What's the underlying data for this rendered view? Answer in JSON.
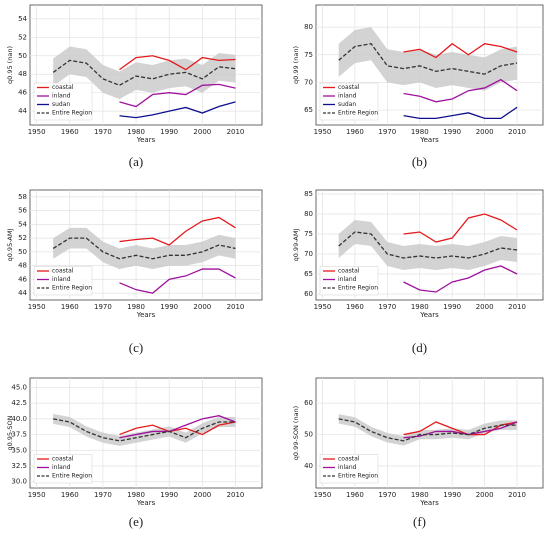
{
  "chart_data": [
    {
      "type": "line",
      "caption": "(a)",
      "xlabel": "Years",
      "ylabel": "q0.95 (nan)",
      "xlim": [
        1948,
        2018
      ],
      "xticks": [
        1950,
        1960,
        1970,
        1980,
        1990,
        2000,
        2010
      ],
      "ylim": [
        42.5,
        55.5
      ],
      "yticks": [
        44,
        46,
        48,
        50,
        52,
        54
      ],
      "grid": true,
      "legend": "lower left",
      "band": {
        "color": "#c8c8c8",
        "x": [
          1955,
          1960,
          1965,
          1970,
          1975,
          1980,
          1985,
          1990,
          1995,
          2000,
          2005,
          2010
        ],
        "low": [
          46.7,
          48.0,
          47.7,
          46.0,
          45.3,
          46.3,
          46.0,
          46.5,
          46.7,
          46.0,
          47.3,
          47.1
        ],
        "high": [
          49.7,
          51.0,
          50.7,
          49.0,
          48.3,
          49.3,
          49.0,
          49.5,
          49.7,
          49.0,
          50.3,
          50.1
        ]
      },
      "series": [
        {
          "name": "coastal",
          "color": "#e41a1c",
          "x": [
            1975,
            1980,
            1985,
            1990,
            1995,
            2000,
            2005,
            2010
          ],
          "values": [
            48.5,
            49.8,
            50.0,
            49.5,
            48.5,
            49.8,
            49.5,
            49.6
          ]
        },
        {
          "name": "inland",
          "color": "#a0119e",
          "x": [
            1975,
            1980,
            1985,
            1990,
            1995,
            2000,
            2005,
            2010
          ],
          "values": [
            45.0,
            44.5,
            45.8,
            46.0,
            45.8,
            46.8,
            46.9,
            46.5
          ]
        },
        {
          "name": "sudan",
          "color": "#10108f",
          "x": [
            1975,
            1980,
            1985,
            1990,
            1995,
            2000,
            2005,
            2010
          ],
          "values": [
            43.5,
            43.3,
            43.6,
            44.0,
            44.4,
            43.8,
            44.5,
            45.0
          ]
        },
        {
          "name": "Entire Region",
          "color": "#333333",
          "dashed": true,
          "x": [
            1955,
            1960,
            1965,
            1970,
            1975,
            1980,
            1985,
            1990,
            1995,
            2000,
            2005,
            2010
          ],
          "values": [
            48.2,
            49.5,
            49.2,
            47.5,
            46.8,
            47.8,
            47.5,
            48.0,
            48.2,
            47.5,
            48.8,
            48.6
          ]
        }
      ]
    },
    {
      "type": "line",
      "caption": "(b)",
      "xlabel": "Years",
      "ylabel": "q0.99 (nan)",
      "xlim": [
        1948,
        2018
      ],
      "xticks": [
        1950,
        1960,
        1970,
        1980,
        1990,
        2000,
        2010
      ],
      "ylim": [
        62.3,
        84
      ],
      "yticks": [
        65,
        70,
        75,
        80
      ],
      "grid": true,
      "legend": "lower left",
      "band": {
        "color": "#c8c8c8",
        "x": [
          1955,
          1960,
          1965,
          1970,
          1975,
          1980,
          1985,
          1990,
          1995,
          2000,
          2005,
          2010
        ],
        "low": [
          71,
          73.5,
          74,
          70,
          69.5,
          70,
          69,
          69.5,
          69,
          68.5,
          70,
          70.5
        ],
        "high": [
          77,
          79.5,
          80,
          76,
          75.5,
          76,
          75,
          75.5,
          75,
          74.5,
          76,
          76.5
        ]
      },
      "series": [
        {
          "name": "coastal",
          "color": "#e41a1c",
          "x": [
            1975,
            1980,
            1985,
            1990,
            1995,
            2000,
            2005,
            2010
          ],
          "values": [
            75.5,
            76,
            74.5,
            77,
            75,
            77,
            76.5,
            75.5
          ]
        },
        {
          "name": "inland",
          "color": "#a0119e",
          "x": [
            1975,
            1980,
            1985,
            1990,
            1995,
            2000,
            2005,
            2010
          ],
          "values": [
            68,
            67.5,
            66.5,
            67,
            68.5,
            69,
            70.5,
            68.5
          ]
        },
        {
          "name": "sudan",
          "color": "#10108f",
          "x": [
            1975,
            1980,
            1985,
            1990,
            1995,
            2000,
            2005,
            2010
          ],
          "values": [
            64,
            63.5,
            63.5,
            64,
            64.5,
            63.5,
            63.5,
            65.5
          ]
        },
        {
          "name": "Entire Region",
          "color": "#333333",
          "dashed": true,
          "x": [
            1955,
            1960,
            1965,
            1970,
            1975,
            1980,
            1985,
            1990,
            1995,
            2000,
            2005,
            2010
          ],
          "values": [
            74,
            76.5,
            77,
            73,
            72.5,
            73,
            72,
            72.5,
            72,
            71.5,
            73,
            73.5
          ]
        }
      ]
    },
    {
      "type": "line",
      "caption": "(c)",
      "xlabel": "Years",
      "ylabel": "q0.95-AMJ",
      "xlim": [
        1948,
        2018
      ],
      "xticks": [
        1950,
        1960,
        1970,
        1980,
        1990,
        2000,
        2010
      ],
      "ylim": [
        43,
        59
      ],
      "yticks": [
        44,
        46,
        48,
        50,
        52,
        54,
        56,
        58
      ],
      "grid": true,
      "legend": "lower left",
      "band": {
        "color": "#c8c8c8",
        "x": [
          1955,
          1960,
          1965,
          1970,
          1975,
          1980,
          1985,
          1990,
          1995,
          2000,
          2005,
          2010
        ],
        "low": [
          49,
          50.5,
          50.5,
          48.5,
          47.5,
          48,
          47.5,
          48,
          48,
          48.5,
          49.5,
          49
        ],
        "high": [
          52,
          53.5,
          53.5,
          51.5,
          50.5,
          51,
          50.5,
          51,
          51,
          51.5,
          52.5,
          52
        ]
      },
      "series": [
        {
          "name": "coastal",
          "color": "#e41a1c",
          "x": [
            1975,
            1980,
            1985,
            1990,
            1995,
            2000,
            2005,
            2010
          ],
          "values": [
            51.5,
            51.8,
            52,
            51,
            53,
            54.5,
            55,
            53.5
          ]
        },
        {
          "name": "inland",
          "color": "#a0119e",
          "x": [
            1975,
            1980,
            1985,
            1990,
            1995,
            2000,
            2005,
            2010
          ],
          "values": [
            45.5,
            44.5,
            44,
            46,
            46.5,
            47.5,
            47.5,
            46.2
          ]
        },
        {
          "name": "Entire Region",
          "color": "#333333",
          "dashed": true,
          "x": [
            1955,
            1960,
            1965,
            1970,
            1975,
            1980,
            1985,
            1990,
            1995,
            2000,
            2005,
            2010
          ],
          "values": [
            50.5,
            52,
            52,
            50,
            49,
            49.5,
            49,
            49.5,
            49.5,
            50,
            51,
            50.5
          ]
        }
      ]
    },
    {
      "type": "line",
      "caption": "(d)",
      "xlabel": "Years",
      "ylabel": "q0.99-AMJ",
      "xlim": [
        1948,
        2018
      ],
      "xticks": [
        1950,
        1960,
        1970,
        1980,
        1990,
        2000,
        2010
      ],
      "ylim": [
        58.5,
        86
      ],
      "yticks": [
        60,
        65,
        70,
        75,
        80,
        85
      ],
      "grid": true,
      "legend": "lower left",
      "band": {
        "color": "#c8c8c8",
        "x": [
          1955,
          1960,
          1965,
          1970,
          1975,
          1980,
          1985,
          1990,
          1995,
          2000,
          2005,
          2010
        ],
        "low": [
          69,
          72.5,
          72,
          67,
          66,
          66.5,
          66,
          66.5,
          66,
          67,
          68.5,
          68
        ],
        "high": [
          75,
          78.5,
          78,
          73,
          72,
          72.5,
          72,
          72.5,
          72,
          73,
          74.5,
          74
        ]
      },
      "series": [
        {
          "name": "coastal",
          "color": "#e41a1c",
          "x": [
            1975,
            1980,
            1985,
            1990,
            1995,
            2000,
            2005,
            2010
          ],
          "values": [
            75,
            75.5,
            73,
            74,
            79,
            80,
            78.5,
            76
          ]
        },
        {
          "name": "inland",
          "color": "#a0119e",
          "x": [
            1975,
            1980,
            1985,
            1990,
            1995,
            2000,
            2005,
            2010
          ],
          "values": [
            63,
            61,
            60.5,
            63,
            64,
            66,
            67,
            65
          ]
        },
        {
          "name": "Entire Region",
          "color": "#333333",
          "dashed": true,
          "x": [
            1955,
            1960,
            1965,
            1970,
            1975,
            1980,
            1985,
            1990,
            1995,
            2000,
            2005,
            2010
          ],
          "values": [
            72,
            75.5,
            75,
            70,
            69,
            69.5,
            69,
            69.5,
            69,
            70,
            71.5,
            71
          ]
        }
      ]
    },
    {
      "type": "line",
      "caption": "(e)",
      "xlabel": "Years",
      "ylabel": "q0.95-SON",
      "xlim": [
        1948,
        2018
      ],
      "xticks": [
        1950,
        1960,
        1970,
        1980,
        1990,
        2000,
        2010
      ],
      "ylim": [
        29,
        46.5
      ],
      "yticks": [
        {
          "value": 30,
          "label": "30.0"
        },
        {
          "value": 32.5,
          "label": "32.5"
        },
        {
          "value": 35,
          "label": "35.0"
        },
        {
          "value": 37.5,
          "label": "37.5"
        },
        {
          "value": 40,
          "label": "40.0"
        },
        {
          "value": 42.5,
          "label": "42.5"
        },
        {
          "value": 45,
          "label": "45.0"
        }
      ],
      "grid": true,
      "legend": "lower left",
      "band": {
        "color": "#c8c8c8",
        "x": [
          1955,
          1960,
          1965,
          1970,
          1975,
          1980,
          1985,
          1990,
          1995,
          2000,
          2005,
          2010
        ],
        "low": [
          39.2,
          38.7,
          37.2,
          36.2,
          35.7,
          36.2,
          36.7,
          37.2,
          36.2,
          37.7,
          38.7,
          38.7
        ],
        "high": [
          40.8,
          40.3,
          38.8,
          37.8,
          37.3,
          37.8,
          38.3,
          38.8,
          37.8,
          39.3,
          40.3,
          40.3
        ]
      },
      "series": [
        {
          "name": "coastal",
          "color": "#e41a1c",
          "x": [
            1975,
            1980,
            1985,
            1990,
            1995,
            2000,
            2005,
            2010
          ],
          "values": [
            37.5,
            38.5,
            39,
            38,
            38.5,
            37.5,
            39,
            39.5
          ]
        },
        {
          "name": "inland",
          "color": "#a0119e",
          "x": [
            1975,
            1980,
            1985,
            1990,
            1995,
            2000,
            2005,
            2010
          ],
          "values": [
            37,
            37.5,
            38,
            38,
            39,
            40,
            40.5,
            39.5
          ]
        },
        {
          "name": "Entire Region",
          "color": "#333333",
          "dashed": true,
          "x": [
            1955,
            1960,
            1965,
            1970,
            1975,
            1980,
            1985,
            1990,
            1995,
            2000,
            2005,
            2010
          ],
          "values": [
            40,
            39.5,
            38,
            37,
            36.5,
            37,
            37.5,
            38,
            37,
            38.5,
            39.5,
            39.5
          ]
        }
      ]
    },
    {
      "type": "line",
      "caption": "(f)",
      "xlabel": "Years",
      "ylabel": "q0.99-SON (nan)",
      "xlim": [
        1948,
        2018
      ],
      "xticks": [
        1950,
        1960,
        1970,
        1980,
        1990,
        2000,
        2010
      ],
      "ylim": [
        33,
        68
      ],
      "yticks": [
        40,
        50,
        60
      ],
      "grid": true,
      "legend": "lower left",
      "band": {
        "color": "#c8c8c8",
        "x": [
          1955,
          1960,
          1965,
          1970,
          1975,
          1980,
          1985,
          1990,
          1995,
          2000,
          2005,
          2010
        ],
        "low": [
          53.5,
          52.5,
          49.5,
          47.5,
          46.5,
          48.5,
          48.5,
          49,
          48.5,
          50.5,
          51.5,
          51.5
        ],
        "high": [
          56.5,
          55.5,
          52.5,
          50.5,
          49.5,
          51.5,
          51.5,
          52,
          51.5,
          53.5,
          54.5,
          54.5
        ]
      },
      "series": [
        {
          "name": "coastal",
          "color": "#e41a1c",
          "x": [
            1975,
            1980,
            1985,
            1990,
            1995,
            2000,
            2005,
            2010
          ],
          "values": [
            50,
            51,
            54,
            52,
            50,
            50,
            53,
            54
          ]
        },
        {
          "name": "inland",
          "color": "#a0119e",
          "x": [
            1975,
            1980,
            1985,
            1990,
            1995,
            2000,
            2005,
            2010
          ],
          "values": [
            49,
            49.5,
            51,
            51,
            50,
            51,
            52,
            54
          ]
        },
        {
          "name": "Entire Region",
          "color": "#333333",
          "dashed": true,
          "x": [
            1955,
            1960,
            1965,
            1970,
            1975,
            1980,
            1985,
            1990,
            1995,
            2000,
            2005,
            2010
          ],
          "values": [
            55,
            54,
            51,
            49,
            48,
            50,
            50,
            50.5,
            50,
            52,
            53,
            53
          ]
        }
      ]
    }
  ]
}
